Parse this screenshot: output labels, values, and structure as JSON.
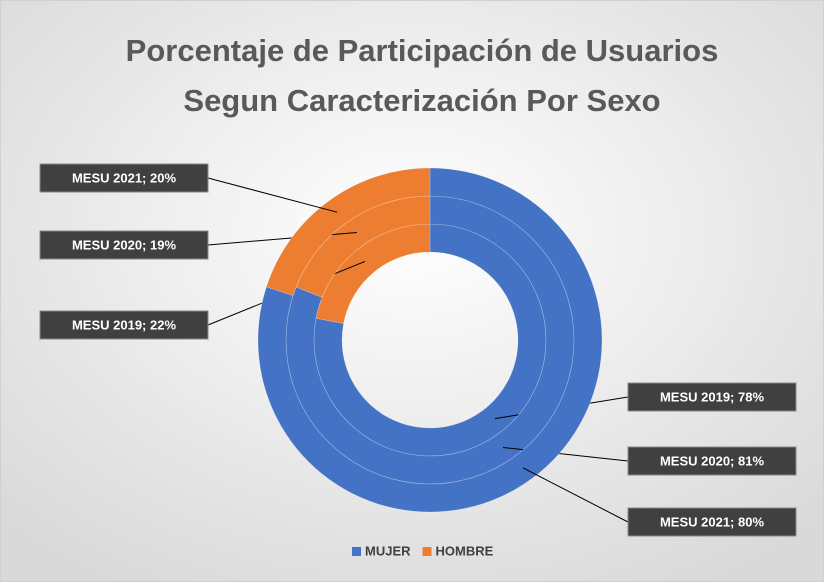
{
  "chart_data": {
    "type": "doughnut",
    "title": "Porcentaje de Participación de Usuarios Segun Caracterización Por Sexo",
    "categories": [
      "MUJER",
      "HOMBRE"
    ],
    "colors": [
      "#4472c4",
      "#ed7d31"
    ],
    "series": [
      {
        "name": "MESU 2019",
        "values": [
          78,
          22
        ],
        "value_labels": [
          "MESU 2019; 78%",
          "MESU 2019; 22%"
        ]
      },
      {
        "name": "MESU 2020",
        "values": [
          81,
          19
        ],
        "value_labels": [
          "MESU 2020; 81%",
          "MESU 2020; 19%"
        ]
      },
      {
        "name": "MESU 2021",
        "values": [
          80,
          20
        ],
        "value_labels": [
          "MESU 2021; 80%",
          "MESU 2021; 20%"
        ]
      }
    ],
    "legend": "bottom"
  }
}
